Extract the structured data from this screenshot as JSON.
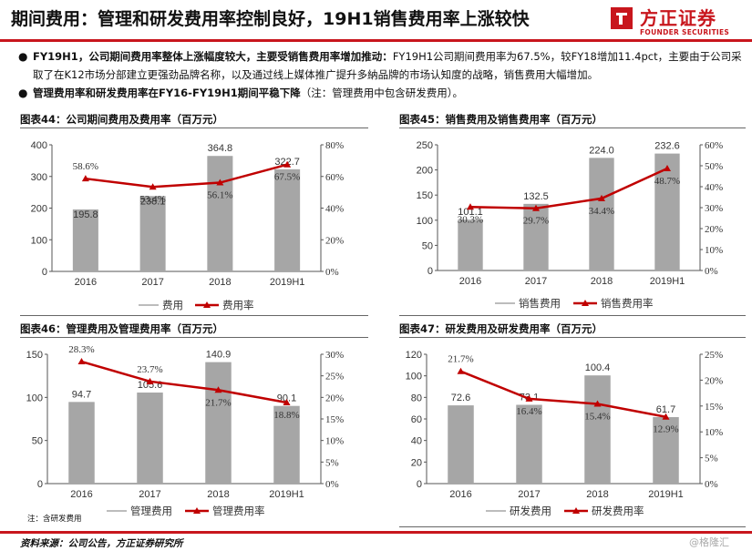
{
  "header": {
    "title": "期间费用：管理和研发费用率控制良好，19H1销售费用率上涨较快",
    "logo_cn": "方正证券",
    "logo_en": "FOUNDER SECURITIES"
  },
  "bullets": [
    {
      "bold": "FY19H1，公司期间费用率整体上涨幅度较大，主要受销售费用率增加推动：",
      "text": "FY19H1公司期间费用率为67.5%，较FY18增加11.4pct，主要由于公司采取了在K12市场分部建立更强劲品牌名称，以及通过线上媒体推广提升多納品牌的市场认知度的战略，销售费用大幅增加。"
    },
    {
      "bold": "管理费用率和研发费用率在FY16-FY19H1期间平稳下降",
      "text": "（注：管理费用中包含研发费用）。"
    }
  ],
  "footer": {
    "note": "注：含研发费用",
    "source": "资料来源：公司公告，方正证券研究所",
    "watermark": "@格隆汇"
  },
  "colors": {
    "bar": "#a6a6a6",
    "line": "#c00000",
    "brand": "#c8161d"
  },
  "chart_data": [
    {
      "type": "bar",
      "title": "图表44：公司期间费用及费用率（百万元）",
      "categories": [
        "2016",
        "2017",
        "2018",
        "2019H1"
      ],
      "series": [
        {
          "name": "费用",
          "kind": "bar",
          "values": [
            195.8,
            238.1,
            364.8,
            322.7
          ],
          "labels": [
            "195.8",
            "238.1",
            "364.8",
            "322.7"
          ]
        },
        {
          "name": "费用率",
          "kind": "line",
          "axis": "right",
          "values": [
            58.6,
            53.4,
            56.1,
            67.5
          ],
          "labels": [
            "58.6%",
            "53.4%",
            "56.1%",
            "67.5%"
          ]
        }
      ],
      "ylim": [
        0,
        400
      ],
      "yticks": [
        "0",
        "100",
        "200",
        "300",
        "400"
      ],
      "y2lim": [
        0,
        80
      ],
      "y2ticks": [
        "0%",
        "20%",
        "40%",
        "60%",
        "80%"
      ],
      "legend": "bottom"
    },
    {
      "type": "bar",
      "title": "图表45：销售费用及销售费用率（百万元）",
      "categories": [
        "2016",
        "2017",
        "2018",
        "2019H1"
      ],
      "series": [
        {
          "name": "销售费用",
          "kind": "bar",
          "values": [
            101.1,
            132.5,
            224.0,
            232.6
          ],
          "labels": [
            "101.1",
            "132.5",
            "224.0",
            "232.6"
          ]
        },
        {
          "name": "销售费用率",
          "kind": "line",
          "axis": "right",
          "values": [
            30.3,
            29.7,
            34.4,
            48.7
          ],
          "labels": [
            "30.3%",
            "29.7%",
            "34.4%",
            "48.7%"
          ]
        }
      ],
      "ylim": [
        0,
        250
      ],
      "yticks": [
        "0",
        "50",
        "100",
        "150",
        "200",
        "250"
      ],
      "y2lim": [
        0,
        60
      ],
      "y2ticks": [
        "0%",
        "10%",
        "20%",
        "30%",
        "40%",
        "50%",
        "60%"
      ],
      "legend": "bottom"
    },
    {
      "type": "bar",
      "title": "图表46：管理费用及管理费用率（百万元）",
      "categories": [
        "2016",
        "2017",
        "2018",
        "2019H1"
      ],
      "series": [
        {
          "name": "管理费用",
          "kind": "bar",
          "values": [
            94.7,
            105.6,
            140.9,
            90.1
          ],
          "labels": [
            "94.7",
            "105.6",
            "140.9",
            "90.1"
          ]
        },
        {
          "name": "管理费用率",
          "kind": "line",
          "axis": "right",
          "values": [
            28.3,
            23.7,
            21.7,
            18.8
          ],
          "labels": [
            "28.3%",
            "23.7%",
            "21.7%",
            "18.8%"
          ]
        }
      ],
      "ylim": [
        0,
        150
      ],
      "yticks": [
        "0",
        "50",
        "100",
        "150"
      ],
      "y2lim": [
        0,
        30
      ],
      "y2ticks": [
        "0%",
        "5%",
        "10%",
        "15%",
        "20%",
        "25%",
        "30%"
      ],
      "legend": "bottom"
    },
    {
      "type": "bar",
      "title": "图表47：研发费用及研发费用率（百万元）",
      "categories": [
        "2016",
        "2017",
        "2018",
        "2019H1"
      ],
      "series": [
        {
          "name": "研发费用",
          "kind": "bar",
          "values": [
            72.6,
            73.1,
            100.4,
            61.7
          ],
          "labels": [
            "72.6",
            "73.1",
            "100.4",
            "61.7"
          ]
        },
        {
          "name": "研发费用率",
          "kind": "line",
          "axis": "right",
          "values": [
            21.7,
            16.4,
            15.4,
            12.9
          ],
          "labels": [
            "21.7%",
            "16.4%",
            "15.4%",
            "12.9%"
          ]
        }
      ],
      "ylim": [
        0,
        120
      ],
      "yticks": [
        "0",
        "20",
        "40",
        "60",
        "80",
        "100",
        "120"
      ],
      "y2lim": [
        0,
        25
      ],
      "y2ticks": [
        "0%",
        "5%",
        "10%",
        "15%",
        "20%",
        "25%"
      ],
      "legend": "bottom"
    }
  ]
}
